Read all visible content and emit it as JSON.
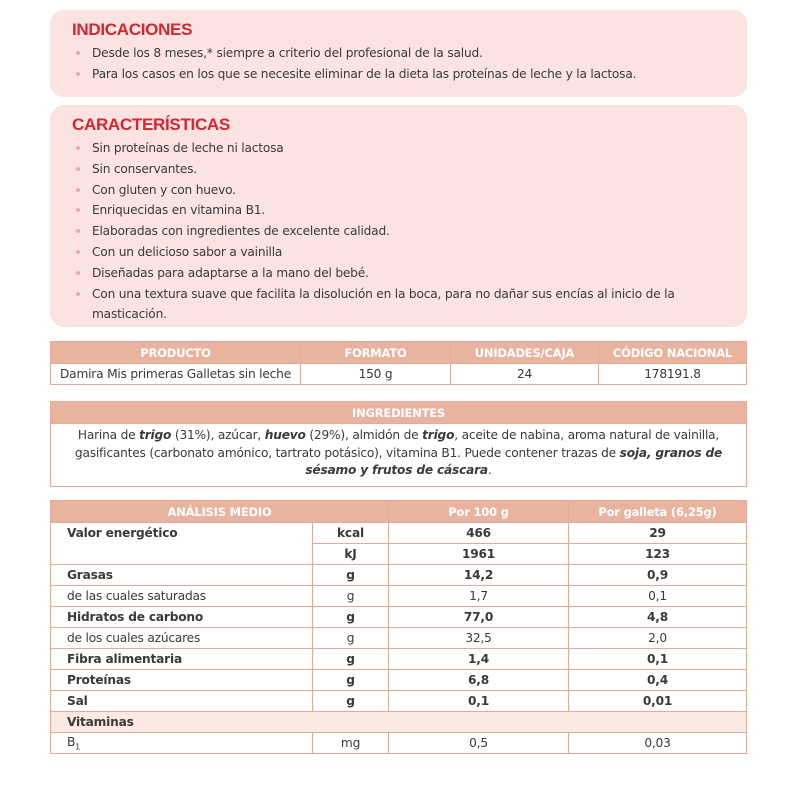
{
  "indicaciones": {
    "title": "INDICACIONES",
    "items": [
      "Desde los 8 meses,* siempre a criterio del profesional de la salud.",
      "Para los casos en los que se necesite eliminar de la dieta las proteínas de leche y la lactosa."
    ]
  },
  "caracteristicas": {
    "title": "CARACTERÍSTICAS",
    "items": [
      "Sin proteínas de leche ni lactosa",
      "Sin conservantes.",
      "Con gluten y con huevo.",
      "Enriquecidas en vitamina B1.",
      "Elaboradas con ingredientes de excelente calidad.",
      "Con un delicioso sabor a vainilla",
      "Diseñadas para adaptarse a la mano del bebé.",
      "Con una textura suave que facilita la disolución en la boca, para no dañar sus encías al inicio de la masticación."
    ]
  },
  "producto": {
    "headers": [
      "PRODUCTO",
      "FORMATO",
      "UNIDADES/CAJA",
      "CÓDIGO NACIONAL"
    ],
    "row": [
      "Damira Mis primeras Galletas sin leche",
      "150 g",
      "24",
      "178191.8"
    ]
  },
  "ingredientes": {
    "title": "INGREDIENTES",
    "segments": [
      {
        "t": "Harina de ",
        "b": false
      },
      {
        "t": "trigo",
        "b": true
      },
      {
        "t": " (31%), azúcar, ",
        "b": false
      },
      {
        "t": "huevo",
        "b": true
      },
      {
        "t": " (29%), almidón de ",
        "b": false
      },
      {
        "t": "trigo",
        "b": true
      },
      {
        "t": ", aceite de nabina, aroma natural de vainilla, gasificantes (carbonato amónico, tartrato potásico), vitamina B1. Puede contener trazas de ",
        "b": false
      },
      {
        "t": "soja, granos de sésamo y frutos de cáscara",
        "b": true
      },
      {
        "t": ".",
        "b": false
      }
    ]
  },
  "analisis": {
    "headers": [
      "ANÁLISIS MEDIO",
      "Por 100 g",
      "Por galleta (6,25g)"
    ],
    "energy": {
      "label": "Valor energético",
      "rows": [
        [
          "kcal",
          "466",
          "29"
        ],
        [
          "kJ",
          "1961",
          "123"
        ]
      ]
    },
    "rows": [
      {
        "label": "Grasas",
        "unit": "g",
        "v100": "14,2",
        "vg": "0,9",
        "bold": true
      },
      {
        "label": "de las cuales saturadas",
        "unit": "g",
        "v100": "1,7",
        "vg": "0,1",
        "bold": false
      },
      {
        "label": "Hidratos de carbono",
        "unit": "g",
        "v100": "77,0",
        "vg": "4,8",
        "bold": true
      },
      {
        "label": "de los cuales azúcares",
        "unit": "g",
        "v100": "32,5",
        "vg": "2,0",
        "bold": false
      },
      {
        "label": "Fibra alimentaria",
        "unit": "g",
        "v100": "1,4",
        "vg": "0,1",
        "bold": true
      },
      {
        "label": "Proteínas",
        "unit": "g",
        "v100": "6,8",
        "vg": "0,4",
        "bold": true
      },
      {
        "label": "Sal",
        "unit": "g",
        "v100": "0,1",
        "vg": "0,01",
        "bold": true
      }
    ],
    "vitaminas": "Vitaminas",
    "b1": {
      "label": "B",
      "sub": "1",
      "unit": "mg",
      "v100": "0,5",
      "vg": "0,03"
    }
  }
}
